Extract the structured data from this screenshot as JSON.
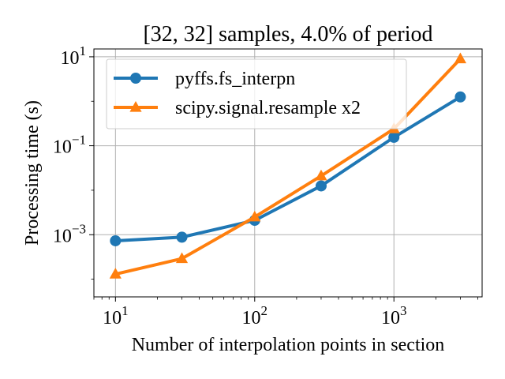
{
  "chart_data": {
    "type": "line",
    "title": "[32, 32] samples, 4.0% of period",
    "xlabel": "Number of interpolation points in section",
    "ylabel": "Processing time (s)",
    "xscale": "log",
    "yscale": "log",
    "xlim": [
      7,
      4300
    ],
    "ylim": [
      4e-05,
      15
    ],
    "grid": true,
    "legend_position": "upper-left",
    "x": [
      10,
      30,
      100,
      300,
      1000,
      3000
    ],
    "x_ticks": [
      {
        "value": 10,
        "base": "10",
        "exp": "1"
      },
      {
        "value": 100,
        "base": "10",
        "exp": "2"
      },
      {
        "value": 1000,
        "base": "10",
        "exp": "3"
      }
    ],
    "y_ticks": [
      {
        "value": 0.001,
        "base": "10",
        "exp": "−3"
      },
      {
        "value": 0.1,
        "base": "10",
        "exp": "−1"
      },
      {
        "value": 10,
        "base": "10",
        "exp": "1"
      }
    ],
    "series": [
      {
        "name": "pyffs.fs_interpn",
        "color": "#1f77b4",
        "marker": "circle",
        "values": [
          0.00073,
          0.00088,
          0.0021,
          0.0125,
          0.155,
          1.25
        ]
      },
      {
        "name": "scipy.signal.resample x2",
        "color": "#ff7f0e",
        "marker": "triangle",
        "values": [
          0.00013,
          0.00029,
          0.0025,
          0.021,
          0.24,
          9.0
        ]
      }
    ]
  }
}
